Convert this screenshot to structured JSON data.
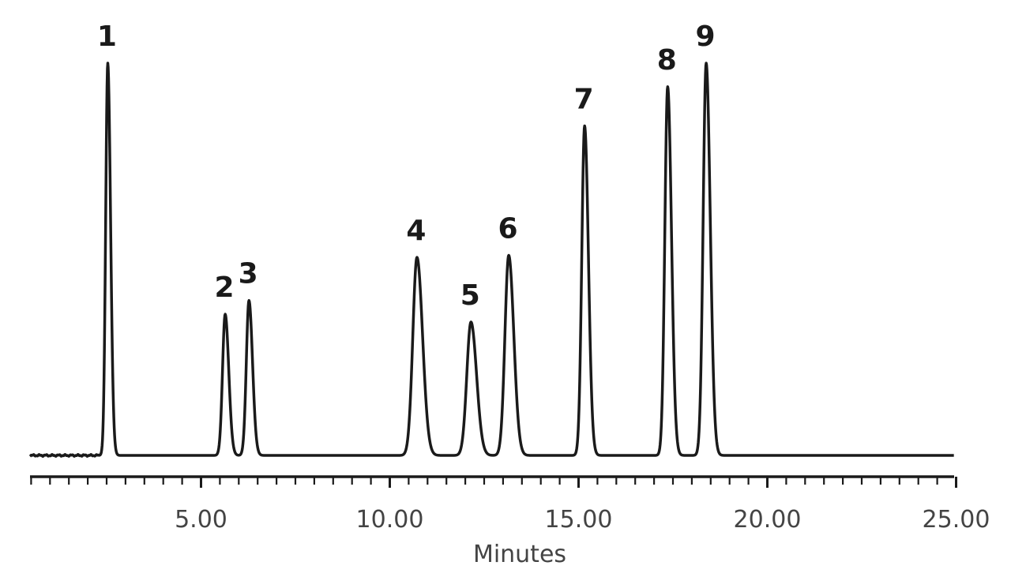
{
  "chart_data": {
    "type": "line",
    "xlabel": "Minutes",
    "ylabel": "",
    "xlim": [
      0,
      25
    ],
    "ylim": [
      0,
      100
    ],
    "grid": false,
    "x_ticks": [
      {
        "value": 5,
        "label": "5.00"
      },
      {
        "value": 10,
        "label": "10.00"
      },
      {
        "value": 15,
        "label": "15.00"
      },
      {
        "value": 20,
        "label": "20.00"
      },
      {
        "value": 25,
        "label": "25.00"
      }
    ],
    "peaks": [
      {
        "label": "1",
        "x": 2.53,
        "y": 100
      },
      {
        "label": "2",
        "x": 5.64,
        "y": 36
      },
      {
        "label": "3",
        "x": 6.27,
        "y": 39.5
      },
      {
        "label": "4",
        "x": 10.72,
        "y": 50.5
      },
      {
        "label": "5",
        "x": 12.15,
        "y": 34
      },
      {
        "label": "6",
        "x": 13.15,
        "y": 51
      },
      {
        "label": "7",
        "x": 15.16,
        "y": 84
      },
      {
        "label": "8",
        "x": 17.36,
        "y": 94
      },
      {
        "label": "9",
        "x": 18.38,
        "y": 100
      }
    ],
    "stroke_color": "#1a1a1a"
  }
}
